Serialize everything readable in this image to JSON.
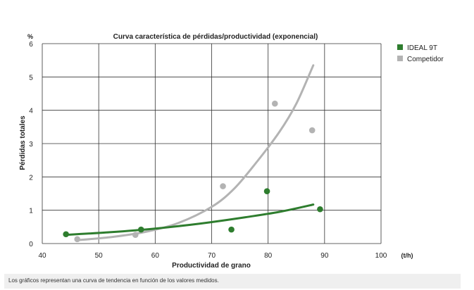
{
  "chart_data": {
    "type": "scatter",
    "title": "Curva característica de pérdidas/productividad (exponencial)",
    "xlabel": "Productividad de grano",
    "ylabel": "Pérdidas totales",
    "x_unit": "(t/h)",
    "y_unit": "%",
    "xlim": [
      40,
      100
    ],
    "ylim": [
      0,
      6
    ],
    "x_ticks": [
      "40",
      "50",
      "60",
      "70",
      "80",
      "90",
      "100"
    ],
    "y_ticks": [
      "0",
      "1",
      "2",
      "3",
      "4",
      "5",
      "6"
    ],
    "grid": true,
    "legend_position": "right",
    "series": [
      {
        "name": "IDEAL 9T",
        "color": "#2e7d2e",
        "points": [
          {
            "x": 44.2,
            "y": 0.28
          },
          {
            "x": 57.5,
            "y": 0.42
          },
          {
            "x": 73.5,
            "y": 0.42
          },
          {
            "x": 79.8,
            "y": 1.57
          },
          {
            "x": 89.2,
            "y": 1.03
          }
        ],
        "trend": [
          {
            "x": 44,
            "y": 0.26
          },
          {
            "x": 52,
            "y": 0.34
          },
          {
            "x": 60,
            "y": 0.45
          },
          {
            "x": 68,
            "y": 0.6
          },
          {
            "x": 76,
            "y": 0.79
          },
          {
            "x": 82,
            "y": 0.95
          },
          {
            "x": 88,
            "y": 1.17
          }
        ]
      },
      {
        "name": "Competidor",
        "color": "#b3b3b3",
        "points": [
          {
            "x": 46.2,
            "y": 0.13
          },
          {
            "x": 56.5,
            "y": 0.26
          },
          {
            "x": 72.0,
            "y": 1.72
          },
          {
            "x": 81.2,
            "y": 4.2
          },
          {
            "x": 87.8,
            "y": 3.4
          }
        ],
        "trend": [
          {
            "x": 46,
            "y": 0.1
          },
          {
            "x": 52,
            "y": 0.19
          },
          {
            "x": 58,
            "y": 0.34
          },
          {
            "x": 64,
            "y": 0.61
          },
          {
            "x": 70,
            "y": 1.1
          },
          {
            "x": 74,
            "y": 1.65
          },
          {
            "x": 78,
            "y": 2.45
          },
          {
            "x": 82,
            "y": 3.35
          },
          {
            "x": 85,
            "y": 4.2
          },
          {
            "x": 88,
            "y": 5.35
          }
        ]
      }
    ]
  },
  "caption": "Los gráficos representan una curva de tendencia en función de los valores medidos."
}
